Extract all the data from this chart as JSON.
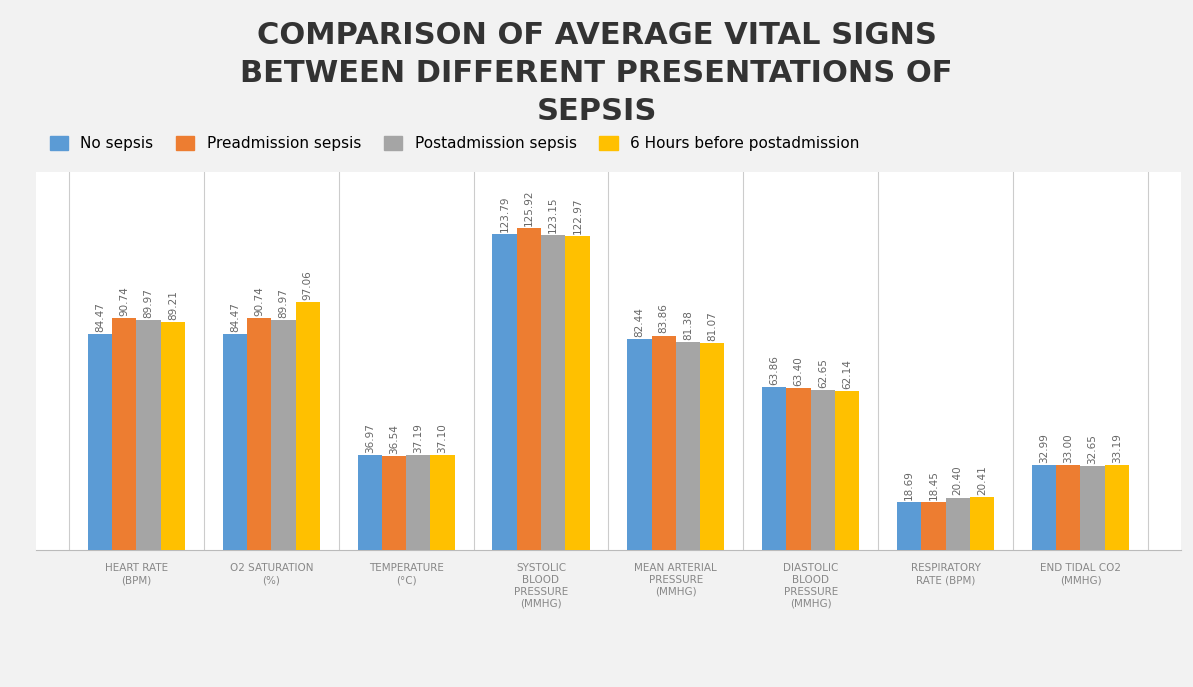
{
  "title": "COMPARISON OF AVERAGE VITAL SIGNS\nBETWEEN DIFFERENT PRESENTATIONS OF\nSEPSIS",
  "categories": [
    "HEART RATE\n(BPM)",
    "O2 SATURATION\n(%)",
    "TEMPERATURE\n(°C)",
    "SYSTOLIC\nBLOOD\nPRESSURE\n(MMHG)",
    "MEAN ARTERIAL\nPRESSURE\n(MMHG)",
    "DIASTOLIC\nBLOOD\nPRESSURE\n(MMHG)",
    "RESPIRATORY\nRATE (BPM)",
    "END TIDAL CO2\n(MMHG)"
  ],
  "legend_labels": [
    "No sepsis",
    "Preadmission sepsis",
    "Postadmission sepsis",
    "6 Hours before postadmission"
  ],
  "colors": [
    "#5B9BD5",
    "#ED7D31",
    "#A5A5A5",
    "#FFC000"
  ],
  "values": {
    "no_sepsis": [
      84.47,
      84.47,
      36.97,
      123.79,
      82.44,
      63.86,
      18.69,
      32.99
    ],
    "preadmission": [
      90.74,
      90.74,
      36.54,
      125.92,
      83.86,
      63.4,
      18.45,
      33.0
    ],
    "postadmission": [
      89.97,
      89.97,
      37.19,
      123.15,
      81.38,
      62.65,
      20.4,
      32.65
    ],
    "six_hours": [
      89.21,
      97.06,
      37.1,
      122.97,
      81.07,
      62.14,
      20.41,
      33.19
    ]
  },
  "background_color": "#f2f2f2",
  "bar_area_background": "#ffffff",
  "title_fontsize": 22,
  "label_fontsize": 7.5,
  "value_fontsize": 7.5,
  "legend_fontsize": 11
}
